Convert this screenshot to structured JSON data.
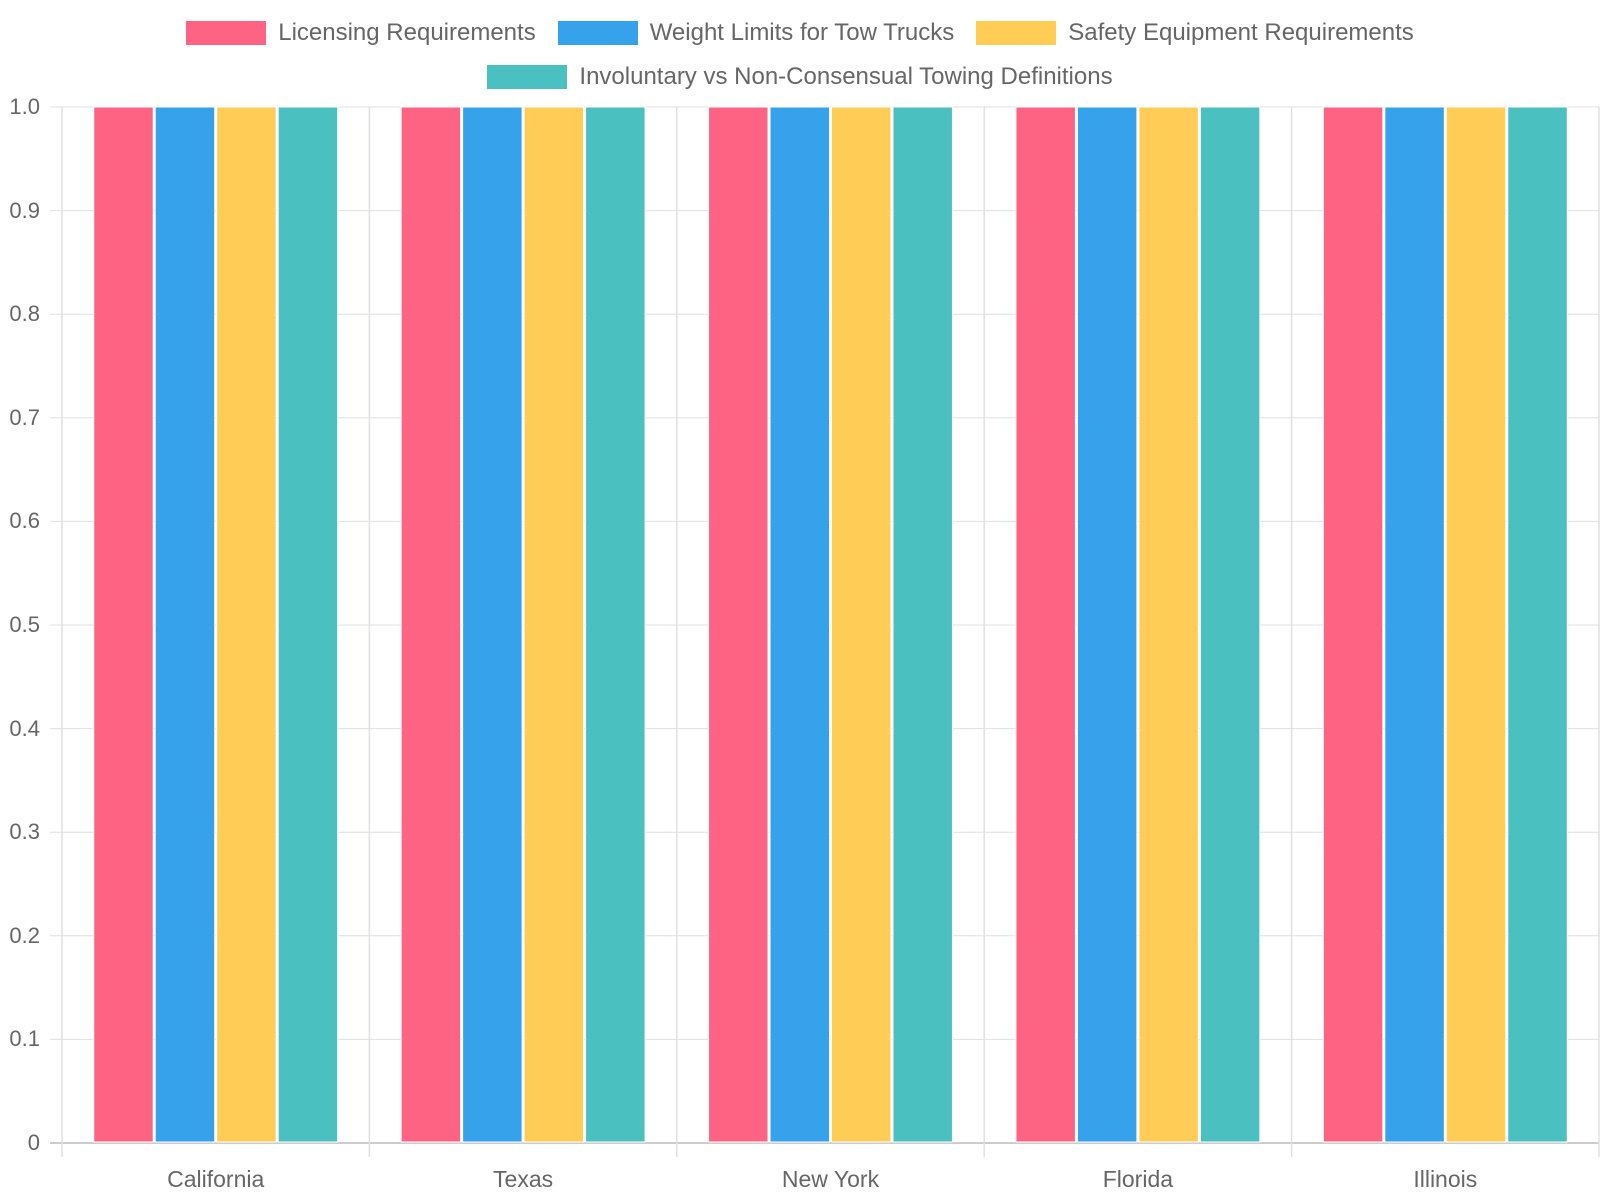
{
  "chart_data": {
    "type": "bar",
    "title": "",
    "xlabel": "",
    "ylabel": "",
    "ylim": [
      0,
      1.0
    ],
    "yticks": [
      "0",
      "0.1",
      "0.2",
      "0.3",
      "0.4",
      "0.5",
      "0.6",
      "0.7",
      "0.8",
      "0.9",
      "1.0"
    ],
    "grid": true,
    "legend_position": "top",
    "categories": [
      "California",
      "Texas",
      "New York",
      "Florida",
      "Illinois"
    ],
    "series": [
      {
        "name": "Licensing Requirements",
        "color": "#ff6384",
        "values": [
          1,
          1,
          1,
          1,
          1
        ]
      },
      {
        "name": "Weight Limits for Tow Trucks",
        "color": "#36a2eb",
        "values": [
          1,
          1,
          1,
          1,
          1
        ]
      },
      {
        "name": "Safety Equipment Requirements",
        "color": "#ffcd56",
        "values": [
          1,
          1,
          1,
          1,
          1
        ]
      },
      {
        "name": "Involuntary vs Non-Consensual Towing Definitions",
        "color": "#4bc0c0",
        "values": [
          1,
          1,
          1,
          1,
          1
        ]
      }
    ]
  },
  "legend": {
    "items": [
      {
        "label": "Licensing Requirements",
        "color": "#ff6384"
      },
      {
        "label": "Weight Limits for Tow Trucks",
        "color": "#36a2eb"
      },
      {
        "label": "Safety Equipment Requirements",
        "color": "#ffcd56"
      },
      {
        "label": "Involuntary vs Non-Consensual Towing Definitions",
        "color": "#4bc0c0"
      }
    ]
  },
  "colors": {
    "grid": "#e0e0e0",
    "axis": "#cccccc",
    "text": "#666666"
  }
}
